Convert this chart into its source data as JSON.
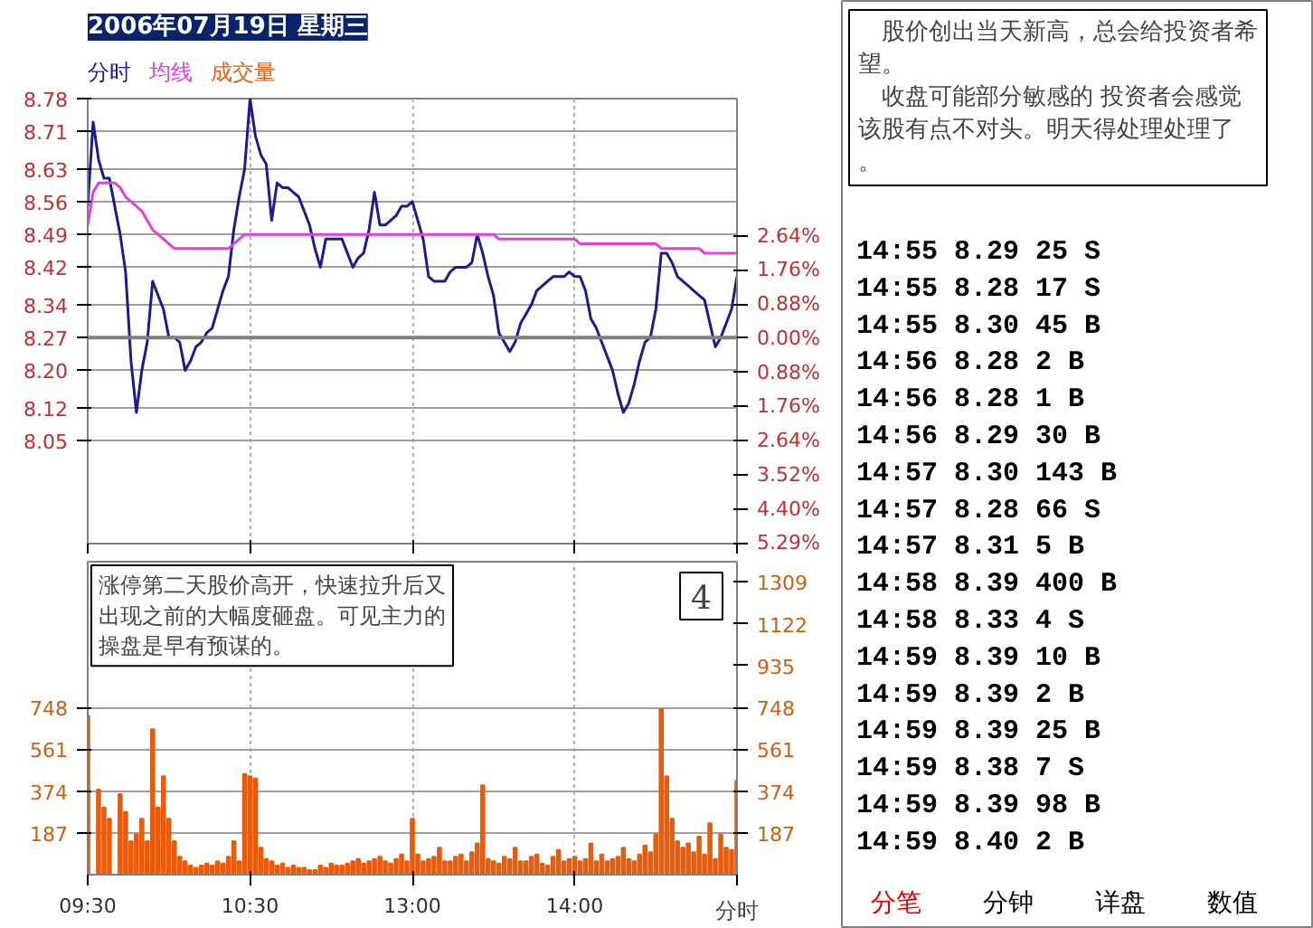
{
  "chart_data": [
    {
      "type": "line",
      "title": "2006年07月19日 星期三",
      "categories": [
        null,
        null,
        null,
        null,
        null,
        null,
        null,
        null,
        null,
        null,
        null,
        null,
        null,
        null,
        null,
        null,
        null,
        null,
        null,
        null,
        null,
        null,
        null,
        null,
        null,
        null,
        null,
        null,
        null,
        null,
        null,
        null,
        null,
        null,
        null,
        null,
        null,
        null,
        null,
        null,
        null,
        null,
        null,
        null,
        null,
        null,
        null,
        null,
        null,
        null,
        null,
        null,
        null,
        null,
        null,
        null,
        null,
        null,
        null,
        null,
        null,
        null,
        null,
        null,
        null,
        null,
        null,
        null,
        null,
        null,
        null,
        null,
        null,
        null,
        null,
        null,
        null,
        null,
        null,
        null,
        null,
        null,
        null,
        null,
        null,
        null,
        null,
        null,
        null,
        null,
        null,
        null,
        null,
        null,
        null,
        null,
        null,
        null,
        null,
        null,
        null,
        null,
        null,
        null,
        null,
        null,
        null,
        null,
        null,
        null,
        null,
        null,
        null,
        null,
        null,
        null,
        null,
        null,
        null,
        null,
        null
      ],
      "series": [
        {
          "name": "分时",
          "color": "#1c1c8c",
          "values": [
            8.55,
            8.73,
            8.65,
            8.61,
            8.61,
            8.55,
            8.49,
            8.41,
            8.22,
            8.11,
            8.2,
            8.26,
            8.39,
            8.36,
            8.33,
            8.27,
            8.27,
            8.26,
            8.2,
            8.22,
            8.25,
            8.26,
            8.28,
            8.29,
            8.33,
            8.37,
            8.4,
            8.5,
            8.57,
            8.63,
            8.78,
            8.7,
            8.66,
            8.64,
            8.52,
            8.6,
            8.59,
            8.59,
            8.58,
            8.57,
            8.54,
            8.51,
            8.46,
            8.42,
            8.48,
            8.48,
            8.48,
            8.48,
            8.45,
            8.42,
            8.44,
            8.45,
            8.5,
            8.58,
            8.51,
            8.51,
            8.52,
            8.53,
            8.55,
            8.55,
            8.56,
            8.52,
            8.48,
            8.4,
            8.39,
            8.39,
            8.39,
            8.41,
            8.42,
            8.42,
            8.42,
            8.43,
            8.49,
            8.45,
            8.4,
            8.36,
            8.28,
            8.26,
            8.24,
            8.26,
            8.3,
            8.32,
            8.34,
            8.37,
            8.38,
            8.39,
            8.4,
            8.4,
            8.4,
            8.41,
            8.4,
            8.4,
            8.37,
            8.31,
            8.29,
            8.26,
            8.23,
            8.2,
            8.15,
            8.11,
            8.13,
            8.17,
            8.22,
            8.26,
            8.27,
            8.33,
            8.45,
            8.45,
            8.43,
            8.4,
            8.39,
            8.38,
            8.37,
            8.36,
            8.35,
            8.3,
            8.25,
            8.27,
            8.3,
            8.33,
            8.4
          ]
        },
        {
          "name": "均线",
          "color": "#e040e0",
          "values": [
            8.51,
            8.58,
            8.6,
            8.6,
            8.6,
            8.6,
            8.59,
            8.57,
            8.56,
            8.55,
            8.54,
            8.52,
            8.5,
            8.49,
            8.48,
            8.47,
            8.46,
            8.46,
            8.46,
            8.46,
            8.46,
            8.46,
            8.46,
            8.46,
            8.46,
            8.46,
            8.46,
            8.47,
            8.48,
            8.49,
            8.49,
            8.49,
            8.49,
            8.49,
            8.49,
            8.49,
            8.49,
            8.49,
            8.49,
            8.49,
            8.49,
            8.49,
            8.49,
            8.49,
            8.49,
            8.49,
            8.49,
            8.49,
            8.49,
            8.49,
            8.49,
            8.49,
            8.49,
            8.49,
            8.49,
            8.49,
            8.49,
            8.49,
            8.49,
            8.49,
            8.49,
            8.49,
            8.49,
            8.49,
            8.49,
            8.49,
            8.49,
            8.49,
            8.49,
            8.49,
            8.49,
            8.49,
            8.49,
            8.49,
            8.49,
            8.49,
            8.48,
            8.48,
            8.48,
            8.48,
            8.48,
            8.48,
            8.48,
            8.48,
            8.48,
            8.48,
            8.48,
            8.48,
            8.48,
            8.48,
            8.48,
            8.47,
            8.47,
            8.47,
            8.47,
            8.47,
            8.47,
            8.47,
            8.47,
            8.47,
            8.47,
            8.47,
            8.47,
            8.47,
            8.47,
            8.47,
            8.46,
            8.46,
            8.46,
            8.46,
            8.46,
            8.46,
            8.46,
            8.46,
            8.45,
            8.45,
            8.45,
            8.45,
            8.45,
            8.45,
            8.45
          ]
        }
      ],
      "tick_labels": "y",
      "ylim": [
        7.83,
        8.78
      ],
      "yticks": [
        8.78,
        8.71,
        8.63,
        8.56,
        8.49,
        8.42,
        8.34,
        8.27,
        {
          "value": 8.2,
          "label": "8.20"
        },
        8.12,
        8.05
      ],
      "y2lim": [
        -5.29,
        6.17
      ],
      "y2ticks": [
        {
          "value": 2.64,
          "label": "2.64%"
        },
        {
          "value": 1.76,
          "label": "1.76%"
        },
        {
          "value": 0.88,
          "label": "0.88%"
        },
        {
          "value": 0,
          "label": "0.00%"
        },
        {
          "value": -0.88,
          "label": "0.88%"
        },
        {
          "value": -1.76,
          "label": "1.76%"
        },
        {
          "value": -2.64,
          "label": "2.64%"
        },
        {
          "value": -3.52,
          "label": "3.52%"
        },
        {
          "value": -4.4,
          "label": "4.40%"
        },
        {
          "value": -5.29,
          "label": "5.29%"
        }
      ],
      "ref_lines": [
        {
          "axis": "y",
          "value": 8.27,
          "color": "#808080"
        }
      ],
      "grid": true,
      "annotations": [
        "股价创出当天新高，总会给投资者希望。",
        "收盘可能部分敏感的 投资者会感觉该股有点不对头。明天得处理处理了。"
      ]
    },
    {
      "type": "bar",
      "categories": [
        "09:30",
        null,
        null,
        null,
        null,
        null,
        null,
        null,
        null,
        null,
        null,
        null,
        null,
        null,
        null,
        null,
        null,
        null,
        null,
        null,
        null,
        null,
        null,
        null,
        null,
        null,
        null,
        null,
        null,
        null,
        "10:30",
        null,
        null,
        null,
        null,
        null,
        null,
        null,
        null,
        null,
        null,
        null,
        null,
        null,
        null,
        null,
        null,
        null,
        null,
        null,
        null,
        null,
        null,
        null,
        null,
        null,
        null,
        null,
        null,
        null,
        "13:00",
        null,
        null,
        null,
        null,
        null,
        null,
        null,
        null,
        null,
        null,
        null,
        null,
        null,
        null,
        null,
        null,
        null,
        null,
        null,
        null,
        null,
        null,
        null,
        null,
        null,
        null,
        null,
        null,
        null,
        "14:00",
        null,
        null,
        null,
        null,
        null,
        null,
        null,
        null,
        null,
        null,
        null,
        null,
        null,
        null,
        null,
        null,
        null,
        null,
        null,
        null,
        null,
        null,
        null,
        null,
        null,
        null,
        null,
        null,
        null,
        null
      ],
      "series": [
        {
          "name": "成交量",
          "color": "#e85c0c",
          "values": [
            710,
            null,
            380,
            300,
            250,
            null,
            360,
            280,
            150,
            180,
            250,
            150,
            650,
            300,
            440,
            250,
            150,
            80,
            60,
            40,
            30,
            40,
            50,
            40,
            60,
            50,
            80,
            150,
            60,
            450,
            440,
            430,
            120,
            70,
            60,
            40,
            50,
            30,
            40,
            30,
            30,
            20,
            20,
            40,
            30,
            50,
            40,
            40,
            50,
            60,
            70,
            50,
            60,
            70,
            80,
            60,
            50,
            70,
            90,
            60,
            250,
            90,
            60,
            70,
            80,
            120,
            60,
            60,
            80,
            90,
            60,
            100,
            140,
            400,
            70,
            60,
            50,
            80,
            70,
            120,
            60,
            60,
            80,
            90,
            50,
            40,
            80,
            110,
            60,
            70,
            80,
            60,
            70,
            140,
            60,
            90,
            60,
            70,
            80,
            120,
            70,
            60,
            90,
            130,
            100,
            180,
            740,
            440,
            250,
            150,
            120,
            140,
            100,
            170,
            90,
            230,
            70,
            180,
            120,
            110,
            420
          ]
        }
      ],
      "xlabel": "分时",
      "ylim": [
        0,
        1400
      ],
      "yticks": [
        187,
        374,
        561,
        748
      ],
      "y2lim": [
        0,
        1400
      ],
      "y2ticks": [
        187,
        374,
        561,
        748,
        935,
        1122,
        1309
      ],
      "grid": true,
      "annotations": [
        "涨停第二天股价高开，快速拉升后又出现之前的大幅度砸盘。可见主力的操盘是早有预谋的。",
        "4"
      ]
    },
    {
      "type": "other",
      "annotations": [
        "14:55 8.29 25 S",
        "14:55 8.28 17 S",
        "14:55 8.30 45 B",
        "14:56 8.28 2 B",
        "14:56 8.28 1 B",
        "14:56 8.29 30 B",
        "14:57 8.30 143 B",
        "14:57 8.28 66 S",
        "14:57 8.31 5 B",
        "14:58 8.39 400 B",
        "14:58 8.33 4 S",
        "14:59 8.39 10 B",
        "14:59 8.39 2 B",
        "14:59 8.39 25 B",
        "14:59 8.38 7 S",
        "14:59 8.39 98 B",
        "14:59 8.40 2 B",
        "分笔 分钟 详盘 数值"
      ],
      "colors": [
        "#000000",
        "#000000",
        "#000000",
        "#000000",
        "#000000",
        "#000000",
        "#000000",
        "#000000",
        "#000000",
        "#000000",
        "#000000",
        "#000000",
        "#000000",
        "#000000",
        "#000000",
        "#000000",
        "#000000"
      ]
    }
  ]
}
